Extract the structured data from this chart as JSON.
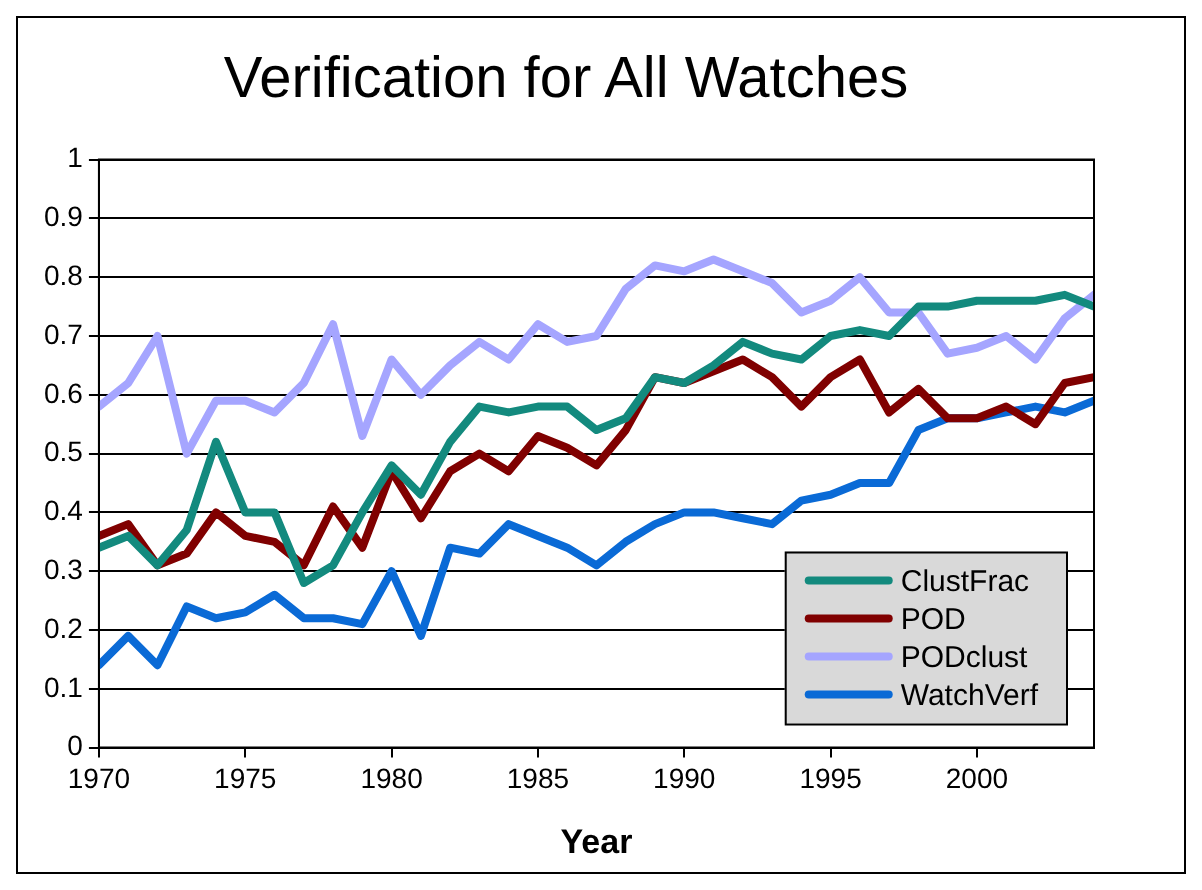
{
  "chart_data": {
    "type": "line",
    "title": "Verification for All Watches",
    "xlabel": "Year",
    "x": [
      1970,
      1971,
      1972,
      1973,
      1974,
      1975,
      1976,
      1977,
      1978,
      1979,
      1980,
      1981,
      1982,
      1983,
      1984,
      1985,
      1986,
      1987,
      1988,
      1989,
      1990,
      1991,
      1992,
      1993,
      1994,
      1995,
      1996,
      1997,
      1998,
      1999,
      2000,
      2001,
      2002,
      2003,
      2004
    ],
    "series": [
      {
        "name": "ClustFrac",
        "color": "#138a7e",
        "values": [
          0.34,
          0.36,
          0.31,
          0.37,
          0.52,
          0.4,
          0.4,
          0.28,
          0.31,
          0.4,
          0.48,
          0.43,
          0.52,
          0.58,
          0.57,
          0.58,
          0.58,
          0.54,
          0.56,
          0.63,
          0.62,
          0.65,
          0.69,
          0.67,
          0.66,
          0.7,
          0.71,
          0.7,
          0.75,
          0.75,
          0.76,
          0.76,
          0.76,
          0.77,
          0.75
        ]
      },
      {
        "name": "POD",
        "color": "#800000",
        "values": [
          0.36,
          0.38,
          0.31,
          0.33,
          0.4,
          0.36,
          0.35,
          0.31,
          0.41,
          0.34,
          0.47,
          0.39,
          0.47,
          0.5,
          0.47,
          0.53,
          0.51,
          0.48,
          0.54,
          0.63,
          0.62,
          0.64,
          0.66,
          0.63,
          0.58,
          0.63,
          0.66,
          0.57,
          0.61,
          0.56,
          0.56,
          0.58,
          0.55,
          0.62,
          0.63
        ]
      },
      {
        "name": "PODclust",
        "color": "#a5a5ff",
        "values": [
          0.58,
          0.62,
          0.7,
          0.5,
          0.59,
          0.59,
          0.57,
          0.62,
          0.72,
          0.53,
          0.66,
          0.6,
          0.65,
          0.69,
          0.66,
          0.72,
          0.69,
          0.7,
          0.78,
          0.82,
          0.81,
          0.83,
          0.81,
          0.79,
          0.74,
          0.76,
          0.8,
          0.74,
          0.74,
          0.67,
          0.68,
          0.7,
          0.66,
          0.73,
          0.77
        ]
      },
      {
        "name": "WatchVerf",
        "color": "#0a6ad6",
        "values": [
          0.14,
          0.19,
          0.14,
          0.24,
          0.22,
          0.23,
          0.26,
          0.22,
          0.22,
          0.21,
          0.3,
          0.19,
          0.34,
          0.33,
          0.38,
          0.36,
          0.34,
          0.31,
          0.35,
          0.38,
          0.4,
          0.4,
          0.39,
          0.38,
          0.42,
          0.43,
          0.45,
          0.45,
          0.54,
          0.56,
          0.56,
          0.57,
          0.58,
          0.57,
          0.59
        ]
      }
    ],
    "xlim": [
      1970,
      2004
    ],
    "xticks": [
      1970,
      1975,
      1980,
      1985,
      1990,
      1995,
      2000
    ],
    "ylim": [
      0,
      1
    ],
    "yticks": [
      0,
      0.1,
      0.2,
      0.3,
      0.4,
      0.5,
      0.6,
      0.7,
      0.8,
      0.9,
      1
    ],
    "grid": "y",
    "legend": "bottom right",
    "marker": "none",
    "line_style": "solid"
  }
}
